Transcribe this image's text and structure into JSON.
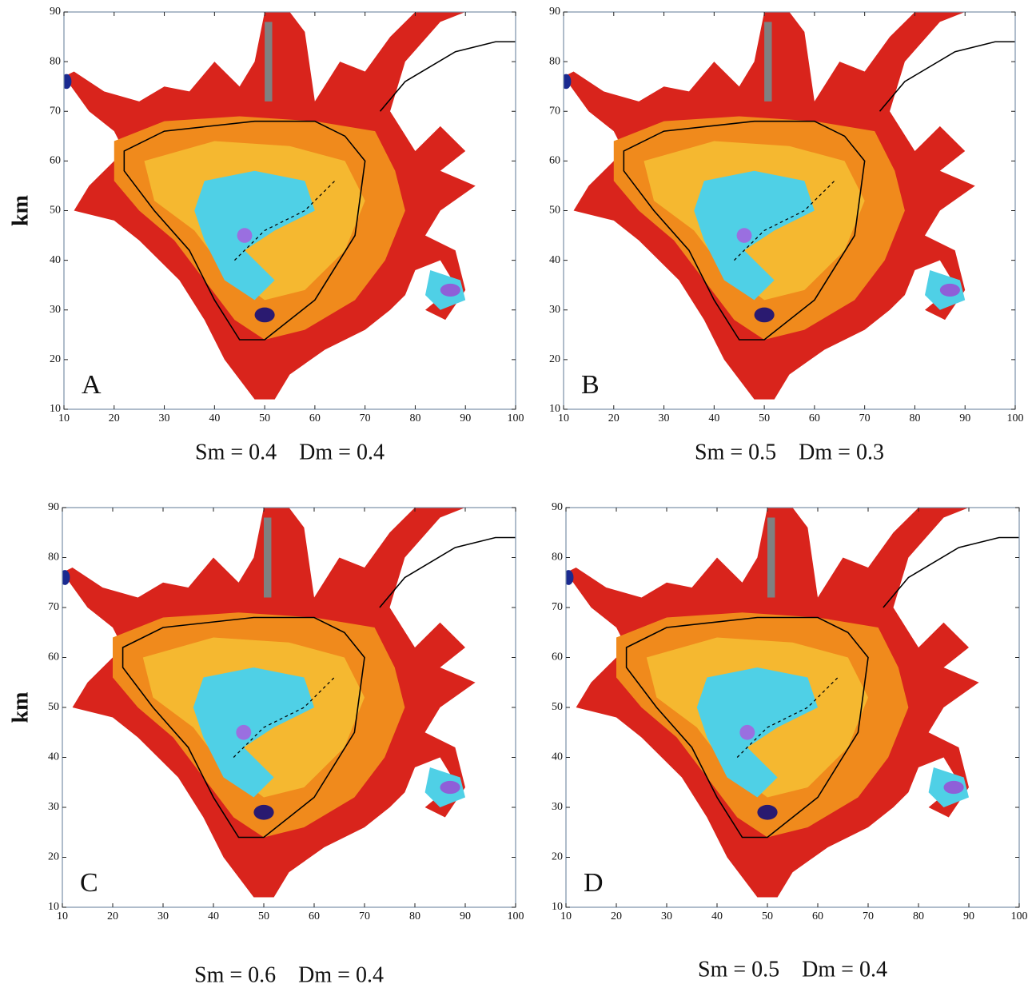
{
  "chart_data": [
    {
      "type": "map",
      "label": "A",
      "caption": "Sm = 0.4    Dm = 0.4",
      "ylabel": "km",
      "xlim": [
        10,
        100
      ],
      "ylim": [
        10,
        90
      ],
      "xticks": [
        10,
        20,
        30,
        40,
        50,
        60,
        70,
        80,
        90,
        100
      ],
      "yticks": [
        10,
        20,
        30,
        40,
        50,
        60,
        70,
        80,
        90
      ]
    },
    {
      "type": "map",
      "label": "B",
      "caption": "Sm = 0.5    Dm = 0.3",
      "xlim": [
        10,
        100
      ],
      "ylim": [
        10,
        90
      ],
      "xticks": [
        10,
        20,
        30,
        40,
        50,
        60,
        70,
        80,
        90,
        100
      ],
      "yticks": [
        10,
        20,
        30,
        40,
        50,
        60,
        70,
        80,
        90
      ]
    },
    {
      "type": "map",
      "label": "C",
      "caption": "Sm = 0.6    Dm = 0.4",
      "ylabel": "km",
      "xlim": [
        10,
        100
      ],
      "ylim": [
        10,
        90
      ],
      "xticks": [
        10,
        20,
        30,
        40,
        50,
        60,
        70,
        80,
        90,
        100
      ],
      "yticks": [
        10,
        20,
        30,
        40,
        50,
        60,
        70,
        80,
        90
      ]
    },
    {
      "type": "map",
      "label": "D",
      "caption": "Sm = 0.5    Dm = 0.4",
      "xlim": [
        10,
        100
      ],
      "ylim": [
        10,
        90
      ],
      "xticks": [
        10,
        20,
        30,
        40,
        50,
        60,
        70,
        80,
        90,
        100
      ],
      "yticks": [
        10,
        20,
        30,
        40,
        50,
        60,
        70,
        80,
        90
      ]
    }
  ]
}
